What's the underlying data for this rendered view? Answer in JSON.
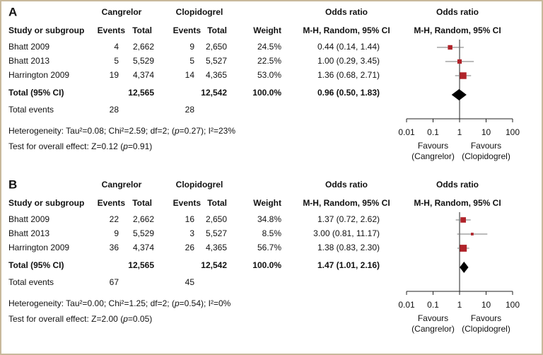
{
  "chart_data": [
    {
      "type": "forest",
      "panel": "A",
      "group1": "Cangrelor",
      "group2": "Clopidogrel",
      "or_header": "Odds ratio",
      "plot_header": "Odds ratio",
      "columns": [
        "Study or subgroup",
        "Events",
        "Total",
        "Events",
        "Total",
        "Weight",
        "M-H, Random, 95% CI",
        "M-H, Random, 95% CI"
      ],
      "rows": [
        {
          "study": "Bhatt 2009",
          "events1": 4,
          "total1": "2,662",
          "events2": 9,
          "total2": "2,650",
          "weight": 24.5,
          "weight_label": "24.5%",
          "or": 0.44,
          "ci": [
            0.14,
            1.44
          ],
          "or_label": "0.44 (0.14, 1.44)"
        },
        {
          "study": "Bhatt 2013",
          "events1": 5,
          "total1": "5,529",
          "events2": 5,
          "total2": "5,527",
          "weight": 22.5,
          "weight_label": "22.5%",
          "or": 1,
          "ci": [
            0.29,
            3.45
          ],
          "or_label": "1.00 (0.29, 3.45)"
        },
        {
          "study": "Harrington 2009",
          "events1": 19,
          "total1": "4,374",
          "events2": 14,
          "total2": "4,365",
          "weight": 53,
          "weight_label": "53.0%",
          "or": 1.36,
          "ci": [
            0.68,
            2.71
          ],
          "or_label": "1.36 (0.68, 2.71)"
        }
      ],
      "total": {
        "label": "Total (95% CI)",
        "total1": "12,565",
        "total2": "12,542",
        "weight": "100.0%",
        "or": 0.96,
        "ci": [
          0.5,
          1.83
        ],
        "or_label": "0.96 (0.50, 1.83)"
      },
      "events": {
        "label": "Total events",
        "events1": 28,
        "events2": 28
      },
      "heterogeneity": [
        "Heterogeneity: Tau²=0.08; Chi²=2.59; df=2; (",
        "p",
        "=0.27); I²=23%"
      ],
      "overall": [
        "Test for overall effect: Z=0.12 (",
        "p",
        "=0.91)"
      ],
      "xscale": "log",
      "xlim": [
        0.01,
        100
      ],
      "xticks": [
        0.01,
        0.1,
        1,
        10,
        100
      ],
      "favours_left": [
        "Favours",
        "(Cangrelor)"
      ],
      "favours_right": [
        "Favours",
        "(Clopidogrel)"
      ],
      "color": "#b0232a"
    },
    {
      "type": "forest",
      "panel": "B",
      "group1": "Cangrelor",
      "group2": "Clopidogrel",
      "or_header": "Odds ratio",
      "plot_header": "Odds ratio",
      "columns": [
        "Study or subgroup",
        "Events",
        "Total",
        "Events",
        "Total",
        "Weight",
        "M-H, Random, 95% CI",
        "M-H, Random, 95% CI"
      ],
      "rows": [
        {
          "study": "Bhatt 2009",
          "events1": 22,
          "total1": "2,662",
          "events2": 16,
          "total2": "2,650",
          "weight": 34.8,
          "weight_label": "34.8%",
          "or": 1.37,
          "ci": [
            0.72,
            2.62
          ],
          "or_label": "1.37 (0.72, 2.62)"
        },
        {
          "study": "Bhatt 2013",
          "events1": 9,
          "total1": "5,529",
          "events2": 3,
          "total2": "5,527",
          "weight": 8.5,
          "weight_label": "8.5%",
          "or": 3,
          "ci": [
            0.81,
            11.17
          ],
          "or_label": "3.00 (0.81, 11.17)"
        },
        {
          "study": "Harrington 2009",
          "events1": 36,
          "total1": "4,374",
          "events2": 26,
          "total2": "4,365",
          "weight": 56.7,
          "weight_label": "56.7%",
          "or": 1.38,
          "ci": [
            0.83,
            2.3
          ],
          "or_label": "1.38 (0.83, 2.30)"
        }
      ],
      "total": {
        "label": "Total (95% CI)",
        "total1": "12,565",
        "total2": "12,542",
        "weight": "100.0%",
        "or": 1.47,
        "ci": [
          1.01,
          2.16
        ],
        "or_label": "1.47 (1.01, 2.16)"
      },
      "events": {
        "label": "Total events",
        "events1": 67,
        "events2": 45
      },
      "heterogeneity": [
        "Heterogeneity: Tau²=0.00; Chi²=1.25; df=2; (",
        "p",
        "=0.54); I²=0%"
      ],
      "overall": [
        "Test for overall effect: Z=2.00 (",
        "p",
        "=0.05)"
      ],
      "xscale": "log",
      "xlim": [
        0.01,
        100
      ],
      "xticks": [
        0.01,
        0.1,
        1,
        10,
        100
      ],
      "favours_left": [
        "Favours",
        "(Cangrelor)"
      ],
      "favours_right": [
        "Favours",
        "(Clopidogrel)"
      ],
      "color": "#b0232a"
    }
  ]
}
